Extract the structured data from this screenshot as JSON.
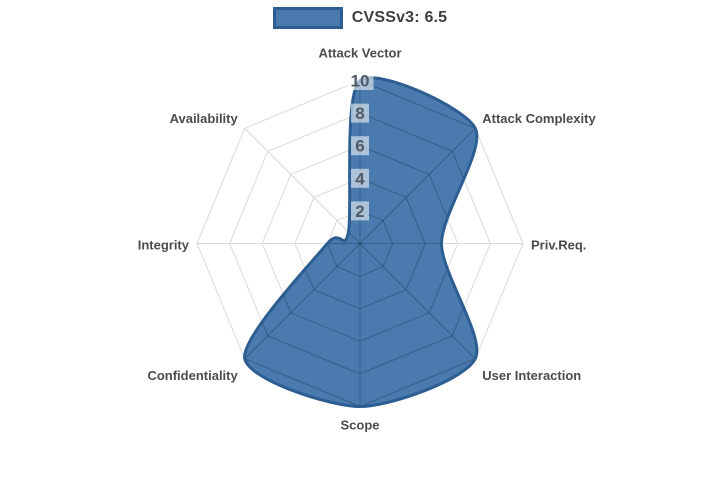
{
  "legend": {
    "label": "CVSSv3: 6.5"
  },
  "colors": {
    "series_fill": "rgba(30,90,154,0.8)",
    "series_fill_solid": "#4b7bae",
    "series_border": "#2d5e91",
    "grid_faint": "#dadada",
    "grid_inner_overlay": "rgba(30,48,70,0.32)",
    "tick_backdrop": "rgba(255,255,255,0.55)",
    "tick_text": "#525c66",
    "axis_label_text": "#4c4c4c",
    "background": "#ffffff"
  },
  "chart_data": {
    "type": "radar",
    "title": "CVSSv3: 6.5",
    "categories": [
      "Attack Vector",
      "Attack Complexity",
      "Priv.Req.",
      "User Interaction",
      "Scope",
      "Confidentiality",
      "Integrity",
      "Availability"
    ],
    "series": [
      {
        "name": "CVSSv3: 6.5",
        "values": [
          10,
          10,
          5,
          10,
          10,
          10,
          2,
          1
        ]
      }
    ],
    "ticks": [
      2,
      4,
      6,
      8,
      10
    ],
    "rlim": [
      0,
      10
    ],
    "grid": true,
    "grid_shape": "polygon",
    "line_smoothing": true,
    "legend_position": "top",
    "start_axis": "top",
    "direction": "clockwise"
  }
}
